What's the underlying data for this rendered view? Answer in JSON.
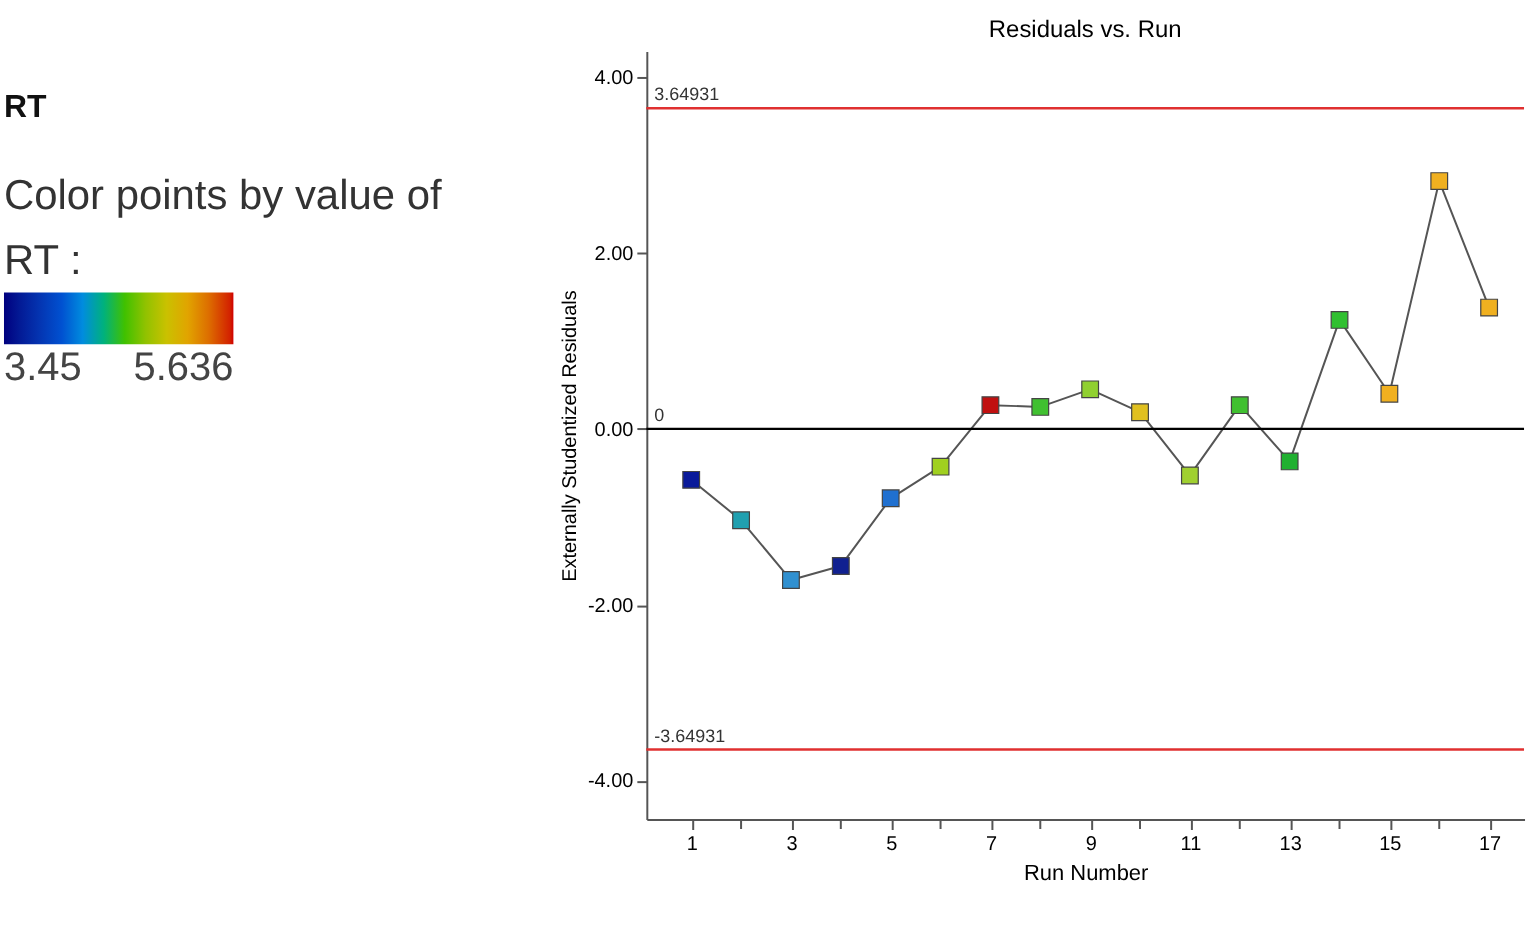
{
  "chart_data": {
    "type": "line",
    "title": "Residuals vs. Run",
    "xlabel": "Run Number",
    "ylabel": "Externally Studentized Residuals",
    "annotations": [
      "RT"
    ],
    "clabel": "Color points by value of RT :",
    "clim": [
      3.45,
      5.636
    ],
    "cticks": [
      3.45,
      5.636
    ],
    "x": [
      1,
      2,
      3,
      4,
      5,
      6,
      7,
      8,
      9,
      10,
      11,
      12,
      13,
      14,
      15,
      16,
      17
    ],
    "series": [
      {
        "color": "#555555",
        "values": [
          -0.58,
          -1.04,
          -1.72,
          -1.56,
          -0.79,
          -0.43,
          0.27,
          0.25,
          0.45,
          0.19,
          -0.53,
          0.27,
          -0.37,
          1.24,
          0.4,
          2.82,
          1.38
        ],
        "colors": [
          "#0a1a9a",
          "#20a0b0",
          "#3090d0",
          "#102090",
          "#2070d0",
          "#a0d020",
          "#c01010",
          "#40c030",
          "#90d030",
          "#e0c020",
          "#a0d030",
          "#40c030",
          "#20b030",
          "#30c030",
          "#f0b020",
          "#f0b020",
          "#f0b020"
        ]
      }
    ],
    "marker": "square",
    "grid": false,
    "xlim": [
      0.1,
      17.7
    ],
    "xticks": [
      1,
      {
        "value": 2,
        "label": null
      },
      3,
      {
        "value": 4,
        "label": null
      },
      5,
      {
        "value": 6,
        "label": null
      },
      7,
      {
        "value": 8,
        "label": null
      },
      9,
      {
        "value": 10,
        "label": null
      },
      11,
      {
        "value": 12,
        "label": null
      },
      13,
      {
        "value": 14,
        "label": null
      },
      15,
      {
        "value": 16,
        "label": null
      },
      17
    ],
    "ylim": [
      -4.44,
      4.3
    ],
    "yticks": [
      {
        "value": -4,
        "label": "-4.00"
      },
      {
        "value": -2,
        "label": "-2.00"
      },
      {
        "value": 0,
        "label": "0.00"
      },
      {
        "value": 2,
        "label": "2.00"
      },
      {
        "value": 4,
        "label": "4.00"
      }
    ],
    "ref_lines": [
      {
        "axis": "y",
        "value": 3.64931,
        "label": "3.64931",
        "color": "#e03030"
      },
      {
        "axis": "y",
        "value": 0,
        "label": "0",
        "color": "#000000"
      },
      {
        "axis": "y",
        "value": -3.64931,
        "label": "-3.64931",
        "color": "#e03030"
      }
    ]
  }
}
